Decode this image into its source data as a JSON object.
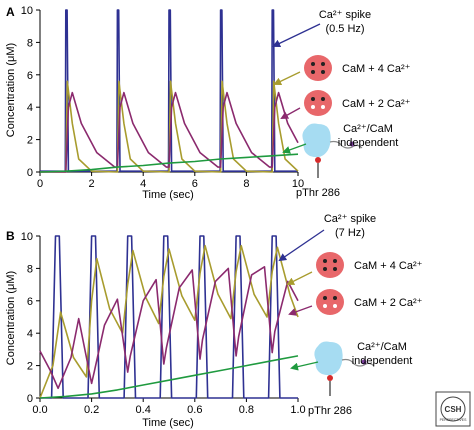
{
  "chart_data": [
    {
      "panel": "A",
      "type": "line",
      "xlabel": "Time (sec)",
      "ylabel": "Concentration (μM)",
      "xlim": [
        0,
        10
      ],
      "ylim": [
        0,
        10
      ],
      "xticks": [
        0,
        2,
        4,
        6,
        8,
        10
      ],
      "yticks": [
        0,
        2,
        4,
        6,
        8,
        10
      ],
      "x_tick_labels": [
        "0",
        "2",
        "4",
        "6",
        "8",
        "10"
      ],
      "y_tick_labels": [
        "0",
        "2",
        "4",
        "6",
        "8",
        "10"
      ],
      "series": [
        {
          "color": "#2e3192",
          "x": [
            0,
            0.98,
            1.0,
            1.05,
            1.1,
            2.98,
            3.0,
            3.05,
            3.1,
            4.98,
            5.0,
            5.05,
            5.1,
            6.98,
            7.0,
            7.05,
            7.1,
            8.98,
            9.0,
            9.05,
            9.1,
            10
          ],
          "values": [
            0.05,
            0.05,
            10.0,
            10.0,
            0.05,
            0.05,
            10.0,
            10.0,
            0.05,
            0.05,
            10.0,
            10.0,
            0.05,
            0.05,
            10.0,
            10.0,
            0.05,
            0.05,
            10.0,
            10.0,
            0.05,
            0.05
          ]
        },
        {
          "color": "#a89c2e",
          "x": [
            0,
            1.0,
            1.06,
            1.25,
            1.5,
            2.0,
            3.0,
            3.06,
            3.25,
            3.5,
            4.0,
            5.0,
            5.06,
            5.25,
            5.5,
            6.0,
            7.0,
            7.06,
            7.25,
            7.5,
            8.0,
            9.0,
            9.06,
            9.25,
            9.5,
            10.0
          ],
          "values": [
            0.0,
            0.0,
            5.6,
            3.0,
            0.8,
            0.05,
            0.0,
            5.6,
            3.0,
            0.8,
            0.05,
            0.0,
            5.6,
            3.0,
            0.8,
            0.05,
            0.0,
            5.6,
            3.0,
            0.8,
            0.05,
            0.0,
            5.6,
            3.0,
            0.8,
            0.05
          ]
        },
        {
          "color": "#8b2a6e",
          "x": [
            0,
            1.0,
            1.1,
            1.25,
            1.6,
            2.2,
            2.9,
            3.0,
            3.1,
            3.25,
            3.6,
            4.2,
            4.9,
            5.0,
            5.1,
            5.25,
            5.6,
            6.2,
            6.9,
            7.0,
            7.1,
            7.25,
            7.6,
            8.2,
            8.9,
            9.0,
            9.1,
            9.25,
            9.6,
            10.0
          ],
          "values": [
            0.0,
            0.0,
            4.0,
            4.9,
            3.0,
            1.2,
            0.3,
            0.3,
            4.0,
            4.9,
            3.0,
            1.2,
            0.3,
            0.3,
            4.0,
            4.9,
            3.0,
            1.2,
            0.3,
            0.3,
            4.0,
            4.9,
            3.0,
            1.2,
            0.3,
            0.3,
            4.0,
            4.9,
            3.0,
            1.8
          ]
        },
        {
          "color": "#1f9a3f",
          "x": [
            0,
            1,
            2,
            3,
            4,
            5,
            6,
            7,
            8,
            9,
            10
          ],
          "values": [
            0.0,
            0.05,
            0.15,
            0.3,
            0.4,
            0.55,
            0.65,
            0.8,
            0.9,
            1.0,
            1.1
          ]
        }
      ],
      "annotations": [
        "Ca²⁺ spike",
        "(0.5 Hz)",
        "CaM + 4 Ca²⁺",
        "CaM + 2 Ca²⁺",
        "Ca²⁺/CaM",
        "independent",
        "pThr 286"
      ]
    },
    {
      "panel": "B",
      "type": "line",
      "xlabel": "Time (sec)",
      "ylabel": "Concentration (μM)",
      "xlim": [
        0,
        1
      ],
      "ylim": [
        0,
        10
      ],
      "xticks": [
        0,
        0.2,
        0.4,
        0.6,
        0.8,
        1.0
      ],
      "yticks": [
        0,
        2,
        4,
        6,
        8,
        10
      ],
      "x_tick_labels": [
        "0.0",
        "0.2",
        "0.4",
        "0.6",
        "0.8",
        "1.0"
      ],
      "y_tick_labels": [
        "0",
        "2",
        "4",
        "6",
        "8",
        "10"
      ],
      "series": [
        {
          "color": "#2e3192",
          "x": [
            0,
            0.045,
            0.06,
            0.075,
            0.09,
            0.186,
            0.2,
            0.215,
            0.23,
            0.326,
            0.34,
            0.355,
            0.37,
            0.466,
            0.48,
            0.495,
            0.51,
            0.606,
            0.62,
            0.635,
            0.65,
            0.746,
            0.76,
            0.775,
            0.79,
            0.886,
            0.9,
            0.915,
            0.93,
            1.0
          ],
          "values": [
            0.0,
            0.0,
            10.0,
            10.0,
            0.0,
            0.0,
            10.0,
            10.0,
            0.0,
            0.0,
            10.0,
            10.0,
            0.0,
            0.0,
            10.0,
            10.0,
            0.0,
            0.0,
            10.0,
            10.0,
            0.0,
            0.0,
            10.0,
            10.0,
            0.0,
            0.0,
            10.0,
            10.0,
            0.0,
            0.0
          ]
        },
        {
          "color": "#a89c2e",
          "x": [
            0,
            0.05,
            0.08,
            0.13,
            0.18,
            0.2,
            0.22,
            0.27,
            0.32,
            0.34,
            0.36,
            0.41,
            0.46,
            0.48,
            0.5,
            0.55,
            0.6,
            0.62,
            0.64,
            0.69,
            0.74,
            0.76,
            0.78,
            0.83,
            0.88,
            0.9,
            0.92,
            0.97,
            1.0
          ],
          "values": [
            0.0,
            2.0,
            5.3,
            2.5,
            1.3,
            6.0,
            8.6,
            5.5,
            4.0,
            7.0,
            9.1,
            6.2,
            4.6,
            7.5,
            9.2,
            6.3,
            4.8,
            7.7,
            9.4,
            6.4,
            4.9,
            7.8,
            9.4,
            6.4,
            5.0,
            7.8,
            9.3,
            6.3,
            5.0
          ]
        },
        {
          "color": "#8b2a6e",
          "x": [
            0,
            0.04,
            0.07,
            0.12,
            0.15,
            0.2,
            0.21,
            0.25,
            0.3,
            0.34,
            0.35,
            0.4,
            0.45,
            0.48,
            0.49,
            0.54,
            0.59,
            0.62,
            0.63,
            0.68,
            0.73,
            0.76,
            0.77,
            0.82,
            0.87,
            0.9,
            0.91,
            0.96,
            1.0
          ],
          "values": [
            2.9,
            1.7,
            0.6,
            2.5,
            4.9,
            0.9,
            1.6,
            4.5,
            6.1,
            1.6,
            2.6,
            6.0,
            7.3,
            2.1,
            3.1,
            6.8,
            7.9,
            2.4,
            3.6,
            7.2,
            8.0,
            2.6,
            3.8,
            7.6,
            8.1,
            2.8,
            4.1,
            7.2,
            6.0
          ]
        },
        {
          "color": "#1f9a3f",
          "x": [
            0,
            0.1,
            0.2,
            0.3,
            0.4,
            0.5,
            0.6,
            0.7,
            0.8,
            0.9,
            1.0
          ],
          "values": [
            0.0,
            0.1,
            0.25,
            0.5,
            0.8,
            1.1,
            1.4,
            1.7,
            2.0,
            2.3,
            2.6
          ]
        }
      ],
      "annotations": [
        "Ca²⁺ spike",
        "(7 Hz)",
        "CaM + 4 Ca²⁺",
        "CaM + 2 Ca²⁺",
        "Ca²⁺/CaM",
        "independent",
        "pThr 286"
      ]
    }
  ],
  "logo": {
    "text": "CSH PERSPECTIVES"
  }
}
